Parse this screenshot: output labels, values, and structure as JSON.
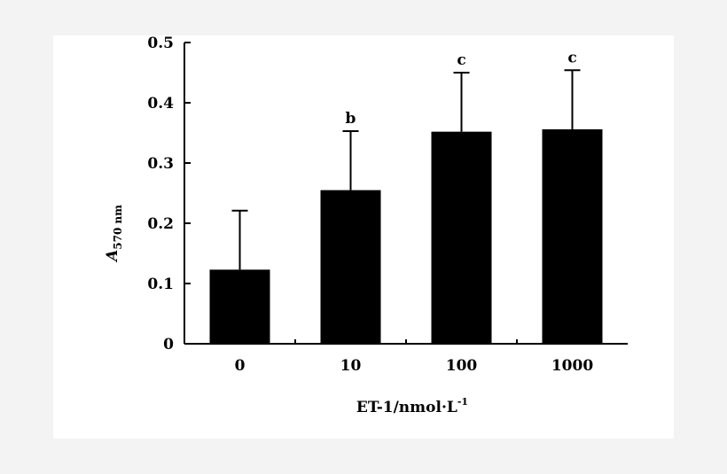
{
  "chart_data": {
    "type": "bar",
    "categories": [
      "0",
      "10",
      "100",
      "1000"
    ],
    "values": [
      0.123,
      0.255,
      0.352,
      0.356
    ],
    "errors": [
      0.098,
      0.098,
      0.098,
      0.098
    ],
    "annotations": [
      "",
      "b",
      "c",
      "c"
    ],
    "ylabel": {
      "main": "A",
      "sub": "570 nm"
    },
    "xlabel": {
      "main": "ET-1/nmol·L",
      "sup": "-1"
    },
    "ylim": [
      0,
      0.5
    ],
    "yticks": [
      "0",
      "0.1",
      "0.2",
      "0.3",
      "0.4",
      "0.5"
    ],
    "grid": false,
    "colors": {
      "bar": "#000000",
      "axis": "#000000"
    }
  }
}
